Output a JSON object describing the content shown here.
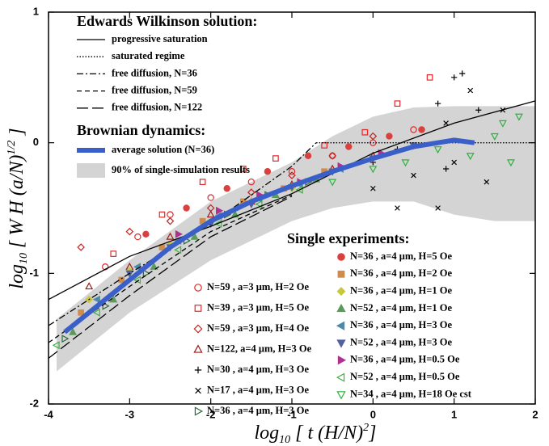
{
  "chart_data": {
    "type": "scatter",
    "xlim": [
      -4,
      2
    ],
    "ylim": [
      -2,
      1
    ],
    "xticks": [
      -4,
      -3,
      -2,
      -1,
      0,
      1,
      2
    ],
    "yticks": [
      -2,
      -1,
      0,
      1
    ],
    "x_label": [
      "log",
      "10",
      " [ t  (H/N)",
      "2",
      "]"
    ],
    "y_label": [
      "log",
      "10",
      " [ W H (a/N)",
      "1/2",
      " ]"
    ],
    "legend_heads": [
      "Edwards Wilkinson solution:",
      "Brownian dynamics:",
      "Single experiments:"
    ],
    "band": {
      "name": "90% of single-simulation results",
      "color": "#d4d4d4",
      "x": [
        -3.9,
        -3.5,
        -3,
        -2,
        -1,
        -0.5,
        0,
        0.5,
        1,
        1.5,
        2
      ],
      "upper": [
        -1.35,
        -1.15,
        -0.9,
        -0.45,
        -0.15,
        0.05,
        0.2,
        0.27,
        0.28,
        0.28,
        0.28
      ],
      "lower": [
        -1.75,
        -1.55,
        -1.3,
        -0.9,
        -0.6,
        -0.5,
        -0.45,
        -0.45,
        -0.55,
        -0.6,
        -0.6
      ]
    },
    "lines": [
      {
        "name": "progressive saturation",
        "style": "solid",
        "color": "#000000",
        "x": [
          -4,
          -3,
          -2,
          -1,
          0,
          1,
          2
        ],
        "y": [
          -1.2,
          -0.87,
          -0.64,
          -0.39,
          -0.08,
          0.15,
          0.32
        ]
      },
      {
        "name": "saturated regime",
        "style": "dotted",
        "color": "#000000",
        "x": [
          -0.7,
          2
        ],
        "y": [
          0,
          0
        ]
      },
      {
        "name": "free diffusion, N=36",
        "style": "dashdot",
        "color": "#000000",
        "x": [
          -4,
          -3,
          -2,
          -1.5,
          -1,
          -0.7
        ],
        "y": [
          -1.4,
          -1.0,
          -0.62,
          -0.4,
          -0.18,
          0
        ]
      },
      {
        "name": "free diffusion, N=59",
        "style": "dash",
        "color": "#000000",
        "x": [
          -4,
          -3,
          -2,
          -1
        ],
        "y": [
          -1.53,
          -1.1,
          -0.68,
          -0.4
        ]
      },
      {
        "name": "free diffusion, N=122",
        "style": "longdash",
        "color": "#000000",
        "x": [
          -4,
          -3,
          -2,
          -1
        ],
        "y": [
          -1.65,
          -1.17,
          -0.72,
          -0.41
        ]
      },
      {
        "name": "average solution (N=36)",
        "style": "thick",
        "color": "#3a5fc8",
        "x": [
          -3.8,
          -3,
          -2.5,
          -2,
          -1.5,
          -1,
          -0.5,
          0,
          0.5,
          1,
          1.25
        ],
        "y": [
          -1.45,
          -1.05,
          -0.8,
          -0.6,
          -0.45,
          -0.33,
          -0.22,
          -0.12,
          -0.03,
          0.02,
          0.0
        ]
      }
    ],
    "series": [
      {
        "name": "N=59 , a=3 μm, H=2 Oe",
        "marker": "circle",
        "filled": false,
        "color": "#e0282a",
        "x": [
          -3.3,
          -2.9,
          -2.5,
          -2,
          -1.5,
          -1,
          -0.5,
          0,
          0.5
        ],
        "y": [
          -0.95,
          -0.72,
          -0.55,
          -0.42,
          -0.3,
          -0.22,
          -0.1,
          0.0,
          0.1
        ]
      },
      {
        "name": "N=39 , a=3 μm, H=5 Oe",
        "marker": "square",
        "filled": false,
        "color": "#e0282a",
        "x": [
          -3.2,
          -2.6,
          -2.1,
          -1.6,
          -1.2,
          -0.6,
          -0.1,
          0.3,
          0.7
        ],
        "y": [
          -0.85,
          -0.55,
          -0.3,
          -0.2,
          -0.12,
          -0.02,
          0.08,
          0.3,
          0.5
        ]
      },
      {
        "name": "N=59 , a=3 μm, H=4 Oe",
        "marker": "diamond",
        "filled": false,
        "color": "#c81e1e",
        "x": [
          -3.6,
          -3,
          -2.5,
          -2,
          -1.5,
          -1,
          -0.5,
          0
        ],
        "y": [
          -0.8,
          -0.68,
          -0.6,
          -0.5,
          -0.38,
          -0.25,
          -0.1,
          0.05
        ]
      },
      {
        "name": "N=122, a=4 μm, H=3 Oe",
        "marker": "triangle",
        "filled": false,
        "color": "#a01818",
        "x": [
          -3.5,
          -3,
          -2.5,
          -2,
          -1.5,
          -1,
          -0.5,
          0
        ],
        "y": [
          -1.1,
          -0.95,
          -0.72,
          -0.55,
          -0.45,
          -0.32,
          -0.2,
          -0.1
        ]
      },
      {
        "name": "N=30 , a=4 μm, H=3 Oe",
        "marker": "plus",
        "filled": false,
        "color": "#000000",
        "x": [
          0,
          0.3,
          0.6,
          0.8,
          1.0,
          1.1,
          1.3,
          0.9
        ],
        "y": [
          -0.15,
          -0.05,
          0.1,
          0.3,
          0.5,
          0.53,
          0.25,
          -0.2
        ]
      },
      {
        "name": "N=17 , a=4 μm, H=3 Oe",
        "marker": "cross",
        "filled": false,
        "color": "#000000",
        "x": [
          0,
          0.3,
          0.5,
          0.8,
          1.0,
          1.2,
          1.4,
          1.6,
          0.9
        ],
        "y": [
          -0.35,
          -0.5,
          -0.25,
          -0.5,
          -0.15,
          0.4,
          -0.3,
          0.25,
          0.15
        ]
      },
      {
        "name": "N=36 , a=4 μm, H=3 Oe",
        "marker": "tri-right",
        "filled": false,
        "color": "#2a6a3a",
        "x": [
          -3.8,
          -3.3,
          -2.8,
          -2.3,
          -1.8,
          -1.3,
          -0.8
        ],
        "y": [
          -1.5,
          -1.25,
          -1.0,
          -0.75,
          -0.55,
          -0.4,
          -0.3
        ]
      },
      {
        "name": "N=36 , a=4 μm, H=5 Oe",
        "marker": "circle",
        "filled": true,
        "color": "#d9413f",
        "x": [
          -2.8,
          -2.3,
          -1.8,
          -1.3,
          -0.8,
          -0.3,
          0.2,
          0.6
        ],
        "y": [
          -0.7,
          -0.5,
          -0.35,
          -0.22,
          -0.1,
          -0.03,
          0.05,
          0.1
        ]
      },
      {
        "name": "N=36 , a=4 μm, H=2 Oe",
        "marker": "square",
        "filled": true,
        "color": "#d08a4a",
        "x": [
          -3.6,
          -3.1,
          -2.6,
          -2.1,
          -1.6,
          -1.1,
          -0.6
        ],
        "y": [
          -1.3,
          -1.05,
          -0.8,
          -0.6,
          -0.45,
          -0.35,
          -0.22
        ]
      },
      {
        "name": "N=36 , a=4 μm, H=1 Oe",
        "marker": "diamond",
        "filled": true,
        "color": "#c8c840",
        "x": [
          -3.5,
          -3,
          -2.5,
          -2,
          -1.5,
          -1,
          -0.5
        ],
        "y": [
          -1.2,
          -0.98,
          -0.78,
          -0.6,
          -0.45,
          -0.35,
          -0.22
        ]
      },
      {
        "name": "N=52 , a=4 μm, H=1 Oe",
        "marker": "triangle",
        "filled": true,
        "color": "#5a9a5a",
        "x": [
          -3.7,
          -3.2,
          -2.7,
          -2.2,
          -1.7,
          -1.2,
          -0.7
        ],
        "y": [
          -1.45,
          -1.2,
          -0.95,
          -0.72,
          -0.55,
          -0.4,
          -0.28
        ]
      },
      {
        "name": "N=36 , a=4 μm, H=3 Oe",
        "marker": "tri-left",
        "filled": true,
        "color": "#4a8aaa",
        "x": [
          -3.4,
          -2.9,
          -2.4,
          -1.9,
          -1.4,
          -0.9,
          -0.4
        ],
        "y": [
          -1.2,
          -0.95,
          -0.75,
          -0.56,
          -0.43,
          -0.32,
          -0.2
        ]
      },
      {
        "name": "N=52 , a=4 μm, H=3 Oe",
        "marker": "tri-down",
        "filled": true,
        "color": "#5060a0",
        "x": [
          -3,
          -2.5,
          -2,
          -1.5,
          -1,
          -0.5,
          0,
          0.5
        ],
        "y": [
          -1.0,
          -0.8,
          -0.62,
          -0.47,
          -0.34,
          -0.22,
          -0.12,
          -0.02
        ]
      },
      {
        "name": "N=36 , a=4 μm, H=0.5 Oe",
        "marker": "tri-right",
        "filled": true,
        "color": "#b03090",
        "x": [
          -2.4,
          -1.9,
          -1.4,
          -0.9,
          -0.4,
          0.1
        ],
        "y": [
          -0.7,
          -0.52,
          -0.4,
          -0.3,
          -0.18,
          -0.08
        ]
      },
      {
        "name": "N=52 , a=4 μm, H=0.5 Oe",
        "marker": "tri-left",
        "filled": false,
        "color": "#40b040",
        "x": [
          -3.9,
          -3.4,
          -2.9,
          -2.4,
          -1.9,
          -1.4,
          -0.9
        ],
        "y": [
          -1.55,
          -1.3,
          -1.05,
          -0.82,
          -0.62,
          -0.47,
          -0.36
        ]
      },
      {
        "name": "N=34 , a=4 μm, H=18 Oe cst",
        "marker": "tri-down",
        "filled": false,
        "color": "#30b040",
        "x": [
          -0.5,
          0,
          0.4,
          0.8,
          1.2,
          1.5,
          1.7,
          1.8,
          1.6
        ],
        "y": [
          -0.3,
          -0.2,
          -0.15,
          -0.05,
          -0.1,
          0.05,
          -0.15,
          0.2,
          0.15
        ]
      }
    ]
  }
}
